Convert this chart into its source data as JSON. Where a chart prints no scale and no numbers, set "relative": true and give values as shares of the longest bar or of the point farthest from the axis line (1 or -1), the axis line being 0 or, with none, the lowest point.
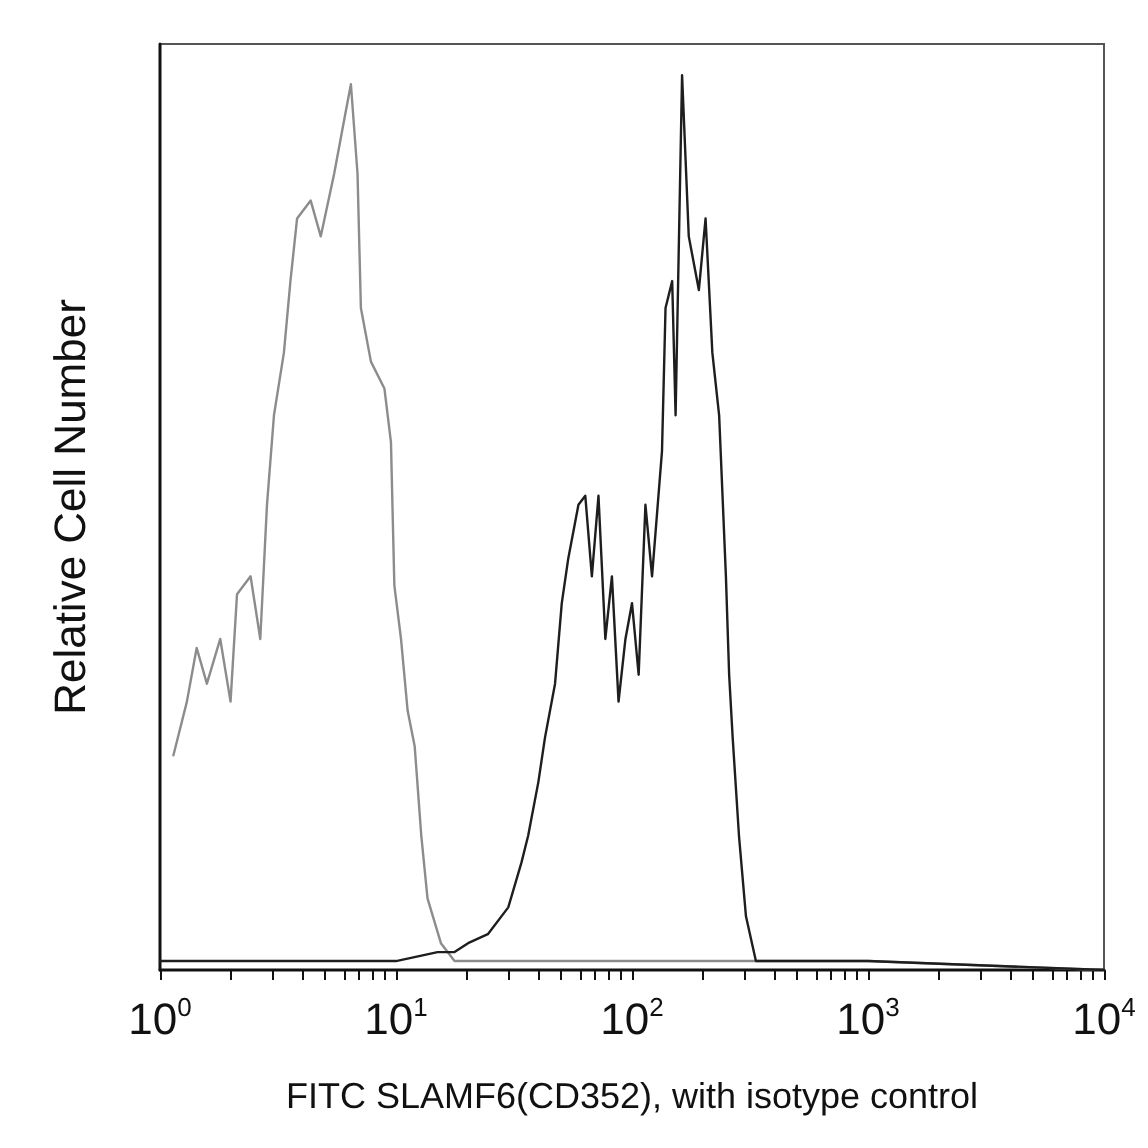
{
  "chart_data": {
    "type": "line",
    "xlabel": "FITC SLAMF6(CD352), with isotype control",
    "ylabel": "Relative Cell Number",
    "relative": true,
    "log": "x",
    "marker": "none",
    "xlim": [
      1,
      10000
    ],
    "xticks": [
      {
        "value": 1,
        "label": "10$^{0}$"
      },
      {
        "value": 2,
        "label": null
      },
      {
        "value": 3,
        "label": null
      },
      {
        "value": 4,
        "label": null
      },
      {
        "value": 5,
        "label": null
      },
      {
        "value": 6,
        "label": null
      },
      {
        "value": 7,
        "label": null
      },
      {
        "value": 8,
        "label": null
      },
      {
        "value": 9,
        "label": null
      },
      {
        "value": 10,
        "label": "10$^{1}$"
      },
      {
        "value": 20,
        "label": null
      },
      {
        "value": 30,
        "label": null
      },
      {
        "value": 40,
        "label": null
      },
      {
        "value": 50,
        "label": null
      },
      {
        "value": 60,
        "label": null
      },
      {
        "value": 70,
        "label": null
      },
      {
        "value": 80,
        "label": null
      },
      {
        "value": 90,
        "label": null
      },
      {
        "value": 100,
        "label": "10$^{2}$"
      },
      {
        "value": 200,
        "label": null
      },
      {
        "value": 300,
        "label": null
      },
      {
        "value": 400,
        "label": null
      },
      {
        "value": 500,
        "label": null
      },
      {
        "value": 600,
        "label": null
      },
      {
        "value": 700,
        "label": null
      },
      {
        "value": 800,
        "label": null
      },
      {
        "value": 900,
        "label": null
      },
      {
        "value": 1000,
        "label": "10$^{3}$"
      },
      {
        "value": 2000,
        "label": null
      },
      {
        "value": 3000,
        "label": null
      },
      {
        "value": 4000,
        "label": null
      },
      {
        "value": 5000,
        "label": null
      },
      {
        "value": 6000,
        "label": null
      },
      {
        "value": 7000,
        "label": null
      },
      {
        "value": 8000,
        "label": null
      },
      {
        "value": 9000,
        "label": null
      },
      {
        "value": 10000,
        "label": "10$^{4}$"
      }
    ],
    "series": [
      {
        "color": "#8c8c8c",
        "x": [
          1.14,
          1.3,
          1.43,
          1.58,
          1.8,
          1.99,
          2.12,
          2.42,
          2.66,
          2.84,
          3.04,
          3.35,
          3.57,
          3.81,
          4.35,
          4.8,
          5.47,
          6.03,
          6.44,
          6.87,
          7.1,
          7.83,
          8.93,
          9.52,
          9.84,
          10.5,
          11.2,
          12,
          12.8,
          13.6,
          15.5,
          17.7,
          30,
          100,
          1000,
          10000
        ],
        "values": [
          0.24,
          0.3,
          0.36,
          0.32,
          0.37,
          0.3,
          0.42,
          0.44,
          0.37,
          0.52,
          0.62,
          0.69,
          0.77,
          0.84,
          0.86,
          0.82,
          0.89,
          0.95,
          0.99,
          0.89,
          0.74,
          0.68,
          0.65,
          0.59,
          0.43,
          0.37,
          0.29,
          0.25,
          0.15,
          0.08,
          0.03,
          0.01,
          0.01,
          0.01,
          0.01,
          0
        ]
      },
      {
        "color": "#1e1e1e",
        "x": [
          1,
          5,
          10,
          15,
          17.7,
          20.2,
          24.5,
          29.9,
          34,
          36.3,
          40.1,
          42.8,
          47.2,
          50.4,
          53.7,
          59.3,
          63.4,
          67.6,
          72.1,
          77.1,
          82.2,
          87.7,
          93.8,
          100,
          106.7,
          114,
          121.6,
          134,
          138.7,
          148,
          153,
          163,
          174,
          192,
          205,
          219,
          234,
          250,
          258,
          267,
          284,
          304,
          335,
          400,
          1000,
          10000
        ],
        "values": [
          0.01,
          0.01,
          0.01,
          0.02,
          0.02,
          0.03,
          0.04,
          0.07,
          0.12,
          0.15,
          0.21,
          0.26,
          0.32,
          0.41,
          0.46,
          0.52,
          0.53,
          0.44,
          0.53,
          0.37,
          0.44,
          0.3,
          0.37,
          0.41,
          0.33,
          0.52,
          0.44,
          0.58,
          0.74,
          0.77,
          0.62,
          1,
          0.82,
          0.76,
          0.84,
          0.69,
          0.62,
          0.44,
          0.33,
          0.26,
          0.15,
          0.06,
          0.01,
          0.01,
          0.01,
          0
        ]
      }
    ]
  }
}
